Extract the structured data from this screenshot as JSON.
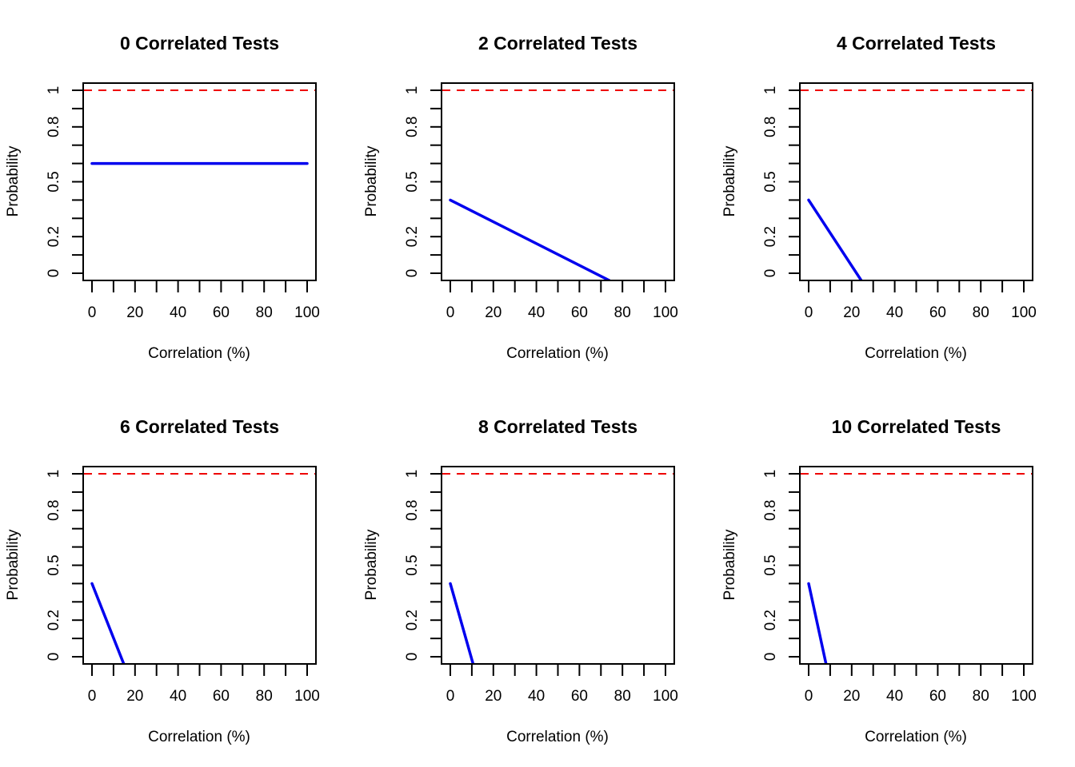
{
  "colors": {
    "series": "#0000ee",
    "reference": "#ee0000",
    "axis": "#000000"
  },
  "chart_data": [
    {
      "type": "line",
      "title": "0 Correlated Tests",
      "xlabel": "Correlation (%)",
      "ylabel": "Probability",
      "xlim": [
        0,
        100
      ],
      "ylim": [
        0,
        1
      ],
      "x_ticks": [
        0,
        20,
        40,
        60,
        80,
        100
      ],
      "x_minor_ticks": [
        10,
        30,
        50,
        70,
        90
      ],
      "x_tick_labels": [
        "0",
        "20",
        "40",
        "60",
        "80",
        "100"
      ],
      "y_ticks": [
        0,
        0.1,
        0.2,
        0.3,
        0.4,
        0.5,
        0.6,
        0.7,
        0.8,
        0.9,
        1
      ],
      "y_tick_labels": [
        {
          "value": 0,
          "label": "0"
        },
        {
          "value": 0.2,
          "label": "0.2"
        },
        {
          "value": 0.5,
          "label": "0.5"
        },
        {
          "value": 0.8,
          "label": "0.8"
        },
        {
          "value": 1,
          "label": "1"
        }
      ],
      "reference_line": {
        "y": 1,
        "style": "dashed"
      },
      "x": [
        0,
        100
      ],
      "y": [
        0.6,
        0.6
      ]
    },
    {
      "type": "line",
      "title": "2 Correlated Tests",
      "xlabel": "Correlation (%)",
      "ylabel": "Probability",
      "xlim": [
        0,
        100
      ],
      "ylim": [
        0,
        1
      ],
      "x_ticks": [
        0,
        20,
        40,
        60,
        80,
        100
      ],
      "x_minor_ticks": [
        10,
        30,
        50,
        70,
        90
      ],
      "x_tick_labels": [
        "0",
        "20",
        "40",
        "60",
        "80",
        "100"
      ],
      "y_ticks": [
        0,
        0.1,
        0.2,
        0.3,
        0.4,
        0.5,
        0.6,
        0.7,
        0.8,
        0.9,
        1
      ],
      "y_tick_labels": [
        {
          "value": 0,
          "label": "0"
        },
        {
          "value": 0.2,
          "label": "0.2"
        },
        {
          "value": 0.5,
          "label": "0.5"
        },
        {
          "value": 0.8,
          "label": "0.8"
        },
        {
          "value": 1,
          "label": "1"
        }
      ],
      "reference_line": {
        "y": 1,
        "style": "dashed"
      },
      "x": [
        0,
        74
      ],
      "y": [
        0.4,
        -0.04
      ]
    },
    {
      "type": "line",
      "title": "4 Correlated Tests",
      "xlabel": "Correlation (%)",
      "ylabel": "Probability",
      "xlim": [
        0,
        100
      ],
      "ylim": [
        0,
        1
      ],
      "x_ticks": [
        0,
        20,
        40,
        60,
        80,
        100
      ],
      "x_minor_ticks": [
        10,
        30,
        50,
        70,
        90
      ],
      "x_tick_labels": [
        "0",
        "20",
        "40",
        "60",
        "80",
        "100"
      ],
      "y_ticks": [
        0,
        0.1,
        0.2,
        0.3,
        0.4,
        0.5,
        0.6,
        0.7,
        0.8,
        0.9,
        1
      ],
      "y_tick_labels": [
        {
          "value": 0,
          "label": "0"
        },
        {
          "value": 0.2,
          "label": "0.2"
        },
        {
          "value": 0.5,
          "label": "0.5"
        },
        {
          "value": 0.8,
          "label": "0.8"
        },
        {
          "value": 1,
          "label": "1"
        }
      ],
      "reference_line": {
        "y": 1,
        "style": "dashed"
      },
      "x": [
        0,
        24.5
      ],
      "y": [
        0.4,
        -0.04
      ]
    },
    {
      "type": "line",
      "title": "6 Correlated Tests",
      "xlabel": "Correlation (%)",
      "ylabel": "Probability",
      "xlim": [
        0,
        100
      ],
      "ylim": [
        0,
        1
      ],
      "x_ticks": [
        0,
        20,
        40,
        60,
        80,
        100
      ],
      "x_minor_ticks": [
        10,
        30,
        50,
        70,
        90
      ],
      "x_tick_labels": [
        "0",
        "20",
        "40",
        "60",
        "80",
        "100"
      ],
      "y_ticks": [
        0,
        0.1,
        0.2,
        0.3,
        0.4,
        0.5,
        0.6,
        0.7,
        0.8,
        0.9,
        1
      ],
      "y_tick_labels": [
        {
          "value": 0,
          "label": "0"
        },
        {
          "value": 0.2,
          "label": "0.2"
        },
        {
          "value": 0.5,
          "label": "0.5"
        },
        {
          "value": 0.8,
          "label": "0.8"
        },
        {
          "value": 1,
          "label": "1"
        }
      ],
      "reference_line": {
        "y": 1,
        "style": "dashed"
      },
      "x": [
        0,
        14.8
      ],
      "y": [
        0.4,
        -0.04
      ]
    },
    {
      "type": "line",
      "title": "8 Correlated Tests",
      "xlabel": "Correlation (%)",
      "ylabel": "Probability",
      "xlim": [
        0,
        100
      ],
      "ylim": [
        0,
        1
      ],
      "x_ticks": [
        0,
        20,
        40,
        60,
        80,
        100
      ],
      "x_minor_ticks": [
        10,
        30,
        50,
        70,
        90
      ],
      "x_tick_labels": [
        "0",
        "20",
        "40",
        "60",
        "80",
        "100"
      ],
      "y_ticks": [
        0,
        0.1,
        0.2,
        0.3,
        0.4,
        0.5,
        0.6,
        0.7,
        0.8,
        0.9,
        1
      ],
      "y_tick_labels": [
        {
          "value": 0,
          "label": "0"
        },
        {
          "value": 0.2,
          "label": "0.2"
        },
        {
          "value": 0.5,
          "label": "0.5"
        },
        {
          "value": 0.8,
          "label": "0.8"
        },
        {
          "value": 1,
          "label": "1"
        }
      ],
      "reference_line": {
        "y": 1,
        "style": "dashed"
      },
      "x": [
        0,
        10.6
      ],
      "y": [
        0.4,
        -0.04
      ]
    },
    {
      "type": "line",
      "title": "10 Correlated Tests",
      "xlabel": "Correlation (%)",
      "ylabel": "Probability",
      "xlim": [
        0,
        100
      ],
      "ylim": [
        0,
        1
      ],
      "x_ticks": [
        0,
        20,
        40,
        60,
        80,
        100
      ],
      "x_minor_ticks": [
        10,
        30,
        50,
        70,
        90
      ],
      "x_tick_labels": [
        "0",
        "20",
        "40",
        "60",
        "80",
        "100"
      ],
      "y_ticks": [
        0,
        0.1,
        0.2,
        0.3,
        0.4,
        0.5,
        0.6,
        0.7,
        0.8,
        0.9,
        1
      ],
      "y_tick_labels": [
        {
          "value": 0,
          "label": "0"
        },
        {
          "value": 0.2,
          "label": "0.2"
        },
        {
          "value": 0.5,
          "label": "0.5"
        },
        {
          "value": 0.8,
          "label": "0.8"
        },
        {
          "value": 1,
          "label": "1"
        }
      ],
      "reference_line": {
        "y": 1,
        "style": "dashed"
      },
      "x": [
        0,
        8.1
      ],
      "y": [
        0.4,
        -0.04
      ]
    }
  ]
}
